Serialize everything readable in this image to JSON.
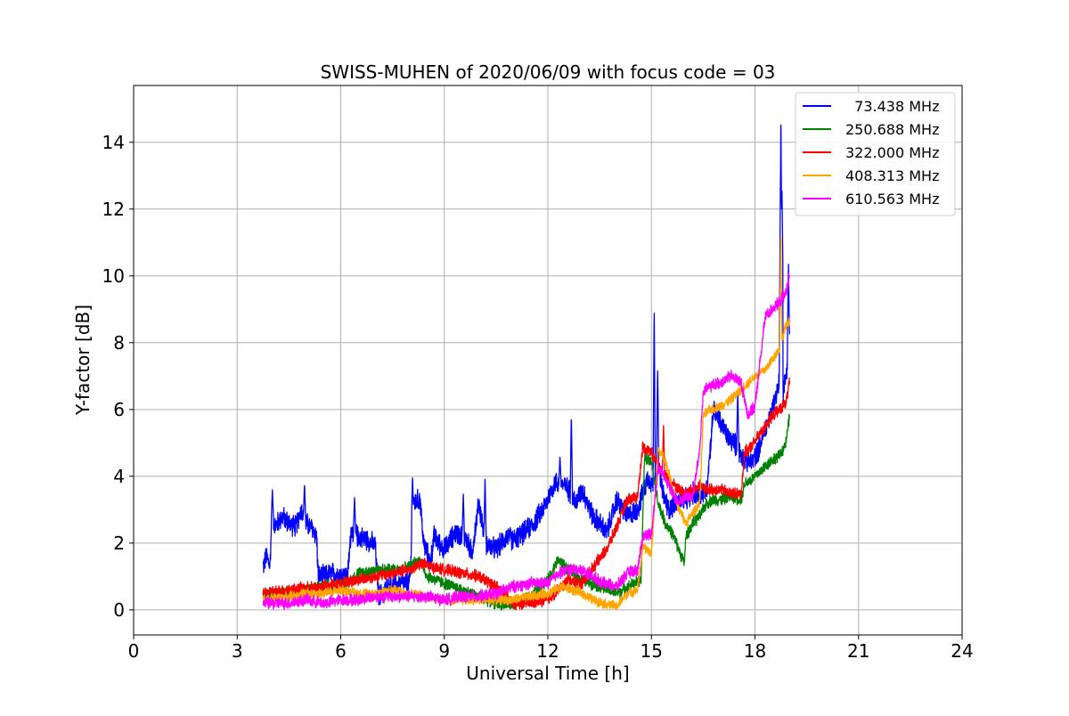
{
  "chart_data": {
    "type": "line",
    "title": "SWISS-MUHEN of 2020/06/09 with focus code = 03",
    "xlabel": "Universal Time [h]",
    "ylabel": "Y-factor [dB]",
    "xlim": [
      0,
      24
    ],
    "ylim": [
      -0.75,
      15.7
    ],
    "xticks": [
      "0",
      "3",
      "6",
      "9",
      "12",
      "15",
      "18",
      "21",
      "24"
    ],
    "yticks": [
      "0",
      "2",
      "4",
      "6",
      "8",
      "10",
      "12",
      "14"
    ],
    "grid": true,
    "legend_position": "top-right",
    "series": [
      {
        "name": "  73.438 MHz",
        "color": "#0000ff",
        "noise": 0.55,
        "x": [
          3.75,
          3.85,
          3.95,
          4.0,
          4.1,
          4.3,
          4.5,
          4.7,
          4.85,
          5.0,
          5.2,
          5.3,
          5.35,
          5.5,
          5.8,
          6.2,
          6.3,
          6.5,
          6.8,
          7.0,
          7.1,
          7.4,
          7.8,
          8.0,
          8.1,
          8.3,
          8.4,
          8.6,
          8.7,
          9.0,
          9.3,
          9.6,
          9.8,
          10.0,
          10.2,
          10.5,
          10.8,
          11.0,
          11.3,
          11.6,
          11.9,
          12.2,
          12.4,
          12.6,
          12.8,
          13.0,
          13.3,
          13.5,
          13.7,
          14.0,
          14.3,
          14.6,
          14.9,
          15.0,
          15.1,
          15.2,
          15.3,
          15.5,
          15.7,
          16.0,
          16.2,
          16.4,
          16.6,
          16.8,
          17.0,
          17.2,
          17.4,
          17.5,
          17.7,
          17.9,
          18.1,
          18.3,
          18.5,
          18.7,
          18.75,
          18.8,
          18.9,
          19.0
        ],
        "y": [
          1.3,
          1.6,
          1.3,
          2.7,
          2.5,
          2.8,
          2.6,
          2.5,
          3.0,
          2.6,
          2.4,
          2.2,
          1.0,
          1.0,
          1.1,
          1.0,
          2.4,
          2.2,
          2.1,
          1.9,
          0.4,
          0.7,
          0.8,
          0.8,
          3.2,
          3.3,
          2.0,
          1.4,
          2.2,
          1.8,
          2.3,
          2.2,
          1.7,
          3.2,
          2.0,
          1.8,
          2.2,
          2.1,
          2.3,
          2.6,
          3.1,
          3.8,
          3.8,
          3.6,
          3.2,
          3.6,
          2.8,
          2.6,
          2.3,
          3.3,
          2.8,
          3.0,
          4.0,
          3.8,
          3.6,
          4.5,
          3.6,
          3.0,
          3.2,
          3.3,
          3.5,
          3.4,
          3.6,
          6.0,
          5.6,
          5.2,
          5.0,
          4.8,
          4.5,
          4.4,
          4.8,
          5.4,
          6.0,
          6.8,
          14.8,
          6.5,
          7.0,
          8.2
        ],
        "spikes": [
          [
            4.02,
            3.6
          ],
          [
            4.95,
            3.8
          ],
          [
            6.4,
            3.4
          ],
          [
            8.08,
            4.0
          ],
          [
            9.55,
            3.5
          ],
          [
            10.18,
            4.0
          ],
          [
            12.35,
            4.6
          ],
          [
            12.68,
            5.9
          ],
          [
            15.08,
            9.2
          ],
          [
            15.18,
            7.3
          ],
          [
            17.5,
            6.6
          ],
          [
            18.78,
            12.8
          ],
          [
            18.97,
            10.4
          ]
        ]
      },
      {
        "name": "250.688 MHz",
        "color": "#008000",
        "noise": 0.3,
        "x": [
          3.75,
          4.0,
          5.0,
          5.5,
          6.2,
          6.5,
          7.0,
          7.5,
          8.0,
          8.3,
          8.5,
          9.0,
          9.5,
          10.0,
          10.5,
          11.0,
          11.5,
          12.0,
          12.3,
          12.6,
          13.0,
          13.5,
          14.0,
          14.5,
          14.7,
          14.8,
          15.0,
          15.2,
          15.4,
          15.6,
          15.8,
          15.95,
          16.0,
          16.2,
          16.4,
          16.6,
          16.8,
          17.0,
          17.3,
          17.6,
          17.7,
          17.9,
          18.1,
          18.3,
          18.5,
          18.7,
          18.9,
          19.0
        ],
        "y": [
          0.4,
          0.5,
          0.6,
          0.7,
          0.8,
          1.1,
          1.2,
          1.2,
          1.3,
          1.5,
          1.0,
          0.8,
          0.6,
          0.4,
          0.2,
          0.15,
          0.4,
          0.9,
          1.5,
          1.2,
          0.9,
          0.7,
          0.5,
          0.8,
          0.9,
          4.6,
          4.4,
          3.2,
          2.6,
          2.3,
          1.8,
          1.4,
          2.2,
          2.6,
          2.8,
          3.2,
          3.3,
          3.3,
          3.4,
          3.3,
          3.8,
          3.9,
          4.1,
          4.3,
          4.5,
          4.6,
          5.0,
          5.8
        ],
        "spikes": []
      },
      {
        "name": "322.000 MHz",
        "color": "#ff0000",
        "noise": 0.3,
        "x": [
          3.75,
          4.5,
          5.5,
          6.0,
          6.5,
          7.0,
          7.5,
          8.0,
          8.3,
          8.6,
          9.0,
          9.5,
          10.0,
          10.5,
          11.0,
          11.5,
          12.0,
          12.3,
          12.6,
          13.0,
          13.4,
          13.7,
          14.0,
          14.3,
          14.6,
          14.75,
          15.0,
          15.2,
          15.4,
          15.6,
          15.8,
          16.0,
          16.2,
          16.4,
          16.6,
          16.8,
          17.0,
          17.3,
          17.6,
          17.7,
          17.9,
          18.1,
          18.3,
          18.5,
          18.7,
          18.9,
          19.0
        ],
        "y": [
          0.5,
          0.6,
          0.7,
          0.8,
          0.9,
          1.0,
          1.1,
          1.2,
          1.4,
          1.3,
          1.2,
          1.1,
          1.0,
          0.7,
          0.2,
          0.2,
          0.3,
          0.6,
          0.9,
          0.8,
          1.4,
          1.8,
          2.5,
          3.3,
          3.4,
          4.9,
          4.7,
          4.4,
          4.0,
          3.8,
          3.6,
          3.5,
          3.6,
          3.7,
          3.6,
          3.6,
          3.6,
          3.5,
          3.5,
          4.7,
          4.9,
          5.2,
          5.5,
          5.8,
          6.0,
          6.2,
          6.8
        ],
        "spikes": [
          [
            15.35,
            5.6
          ]
        ]
      },
      {
        "name": "408.313 MHz",
        "color": "#ffa500",
        "noise": 0.25,
        "x": [
          3.75,
          4.5,
          5.0,
          5.5,
          6.0,
          6.5,
          7.0,
          7.5,
          8.0,
          8.5,
          9.0,
          9.5,
          10.0,
          10.5,
          11.0,
          11.5,
          12.0,
          12.4,
          12.7,
          13.0,
          13.3,
          13.6,
          14.0,
          14.3,
          14.6,
          14.75,
          15.0,
          15.2,
          15.4,
          15.6,
          15.8,
          16.0,
          16.2,
          16.4,
          16.5,
          16.7,
          17.0,
          17.3,
          17.5,
          17.7,
          18.0,
          18.3,
          18.5,
          18.7,
          18.9,
          19.0
        ],
        "y": [
          0.3,
          0.4,
          0.5,
          0.5,
          0.6,
          0.5,
          0.5,
          0.6,
          0.5,
          0.4,
          0.3,
          0.3,
          0.3,
          0.3,
          0.3,
          0.4,
          0.5,
          0.7,
          0.6,
          0.5,
          0.3,
          0.2,
          0.1,
          0.5,
          0.6,
          1.9,
          1.7,
          4.8,
          4.5,
          3.7,
          3.0,
          2.6,
          2.9,
          3.2,
          5.8,
          6.0,
          6.1,
          6.3,
          6.5,
          6.7,
          7.0,
          7.2,
          7.5,
          7.8,
          8.5,
          8.7
        ],
        "spikes": [
          [
            18.75,
            11.4
          ]
        ]
      },
      {
        "name": "610.563 MHz",
        "color": "#ff00ff",
        "noise": 0.3,
        "x": [
          3.75,
          4.5,
          5.0,
          5.5,
          6.0,
          6.5,
          7.0,
          7.5,
          8.0,
          8.5,
          9.0,
          9.5,
          10.0,
          10.5,
          11.0,
          11.5,
          12.0,
          12.3,
          12.6,
          13.0,
          13.3,
          13.6,
          14.0,
          14.3,
          14.6,
          14.75,
          15.0,
          15.2,
          15.4,
          15.6,
          15.8,
          16.0,
          16.2,
          16.4,
          16.5,
          16.7,
          17.0,
          17.3,
          17.5,
          17.6,
          17.8,
          18.0,
          18.3,
          18.5,
          18.7,
          18.9,
          19.0
        ],
        "y": [
          0.2,
          0.2,
          0.3,
          0.2,
          0.3,
          0.3,
          0.4,
          0.4,
          0.4,
          0.4,
          0.3,
          0.4,
          0.4,
          0.5,
          0.7,
          0.8,
          0.8,
          1.1,
          1.2,
          1.2,
          1.0,
          0.8,
          0.7,
          1.1,
          1.2,
          2.2,
          2.3,
          4.3,
          4.0,
          3.5,
          3.2,
          3.4,
          3.4,
          4.8,
          6.5,
          6.7,
          6.8,
          7.0,
          6.9,
          6.8,
          5.8,
          6.1,
          8.8,
          9.0,
          9.2,
          9.5,
          10.0
        ],
        "spikes": []
      }
    ]
  }
}
